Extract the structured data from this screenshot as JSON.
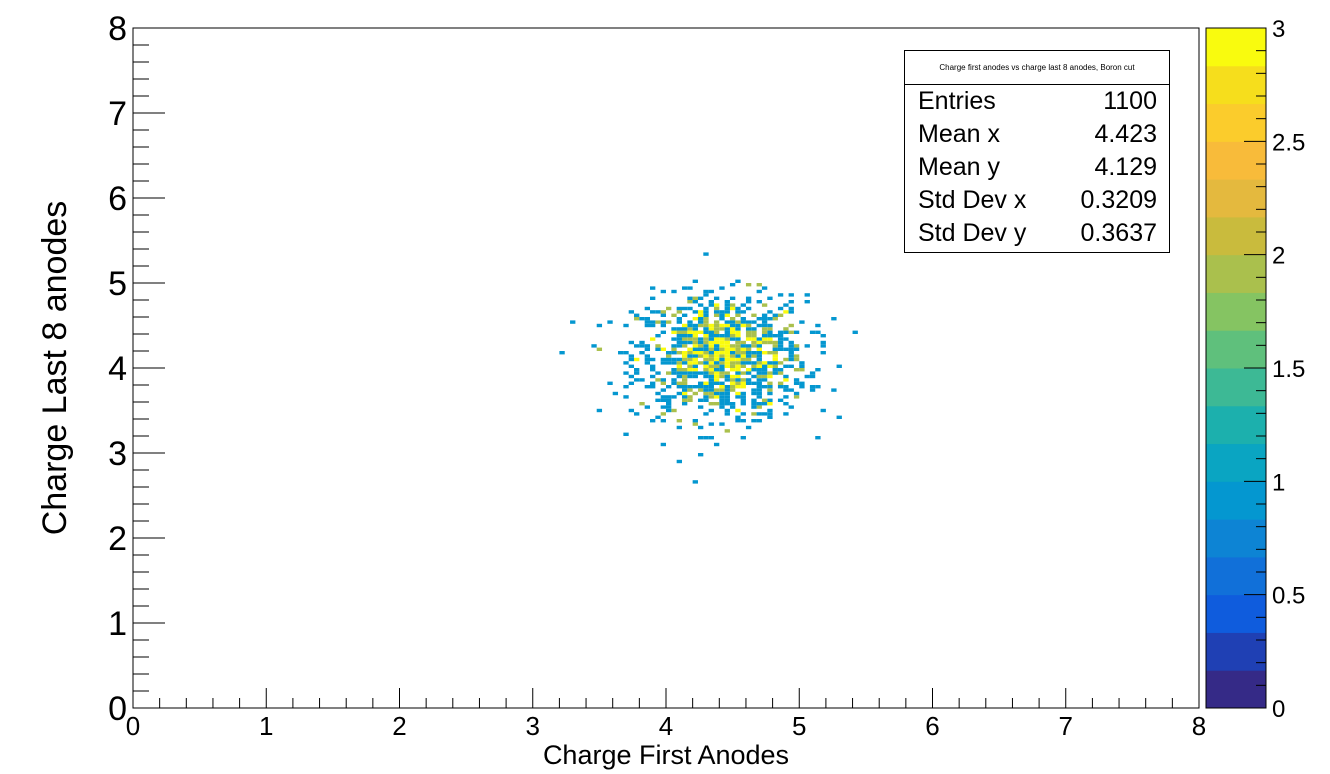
{
  "chart_data": {
    "type": "heatmap",
    "title": "Charge first anodes vs charge last 8 anodes, Boron cut",
    "xlabel": "Charge First Anodes",
    "ylabel": "Charge Last 8 anodes",
    "xlim": [
      0,
      8
    ],
    "ylim": [
      0,
      8
    ],
    "x_ticks": [
      "0",
      "1",
      "2",
      "3",
      "4",
      "5",
      "6",
      "7",
      "8"
    ],
    "y_ticks": [
      "0",
      "1",
      "2",
      "3",
      "4",
      "5",
      "6",
      "7",
      "8"
    ],
    "colorbar": {
      "range": [
        0,
        3
      ],
      "tick_labels": [
        "0",
        "0.5",
        "1",
        "1.5",
        "2",
        "2.5",
        "3"
      ],
      "colors": [
        "#352a87",
        "#1f40b4",
        "#0f5cdd",
        "#1170d9",
        "#0d84d4",
        "#0497d0",
        "#0aa5c2",
        "#1cb0ad",
        "#3db995",
        "#5fc07c",
        "#85c462",
        "#aac04d",
        "#c9bb3d",
        "#e4b93e",
        "#f8bb3a",
        "#fbcc2c",
        "#f6de1c",
        "#f9fb0e"
      ]
    },
    "grid": false,
    "cluster": {
      "entries": 1100,
      "mean_x": 4.423,
      "mean_y": 4.129,
      "std_x": 0.3209,
      "std_y": 0.3637,
      "bin_width": 0.04
    }
  },
  "stats": {
    "title": "Charge first anodes vs charge last 8 anodes, Boron cut",
    "rows": [
      {
        "label": "Entries",
        "value": "1100"
      },
      {
        "label": "Mean x",
        "value": "4.423"
      },
      {
        "label": "Mean y",
        "value": "4.129"
      },
      {
        "label": "Std Dev x",
        "value": "0.3209"
      },
      {
        "label": "Std Dev y",
        "value": "0.3637"
      }
    ]
  }
}
